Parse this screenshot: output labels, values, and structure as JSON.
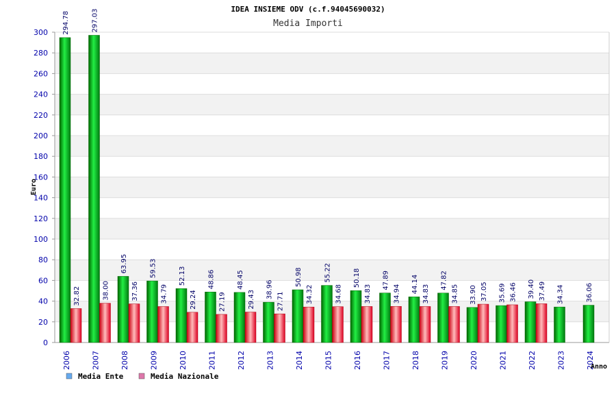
{
  "chart_data": {
    "type": "bar",
    "title": "IDEA INSIEME ODV (c.f.94045690032)",
    "subtitle": "Media Importi",
    "ylabel": "Euro",
    "xlabel": "Anno",
    "ylim": [
      0,
      300
    ],
    "yticks": [
      0,
      20,
      40,
      60,
      80,
      100,
      120,
      140,
      160,
      180,
      200,
      220,
      240,
      260,
      280,
      300
    ],
    "grid": true,
    "legend_position": "bottom-left",
    "categories": [
      "2006",
      "2007",
      "2008",
      "2009",
      "2010",
      "2011",
      "2012",
      "2013",
      "2014",
      "2015",
      "2016",
      "2017",
      "2018",
      "2019",
      "2020",
      "2021",
      "2022",
      "2023",
      "2024"
    ],
    "series": [
      {
        "name": "Media Ente",
        "color": "#00cc33",
        "legend_color": "#66aaee",
        "values": [
          294.78,
          297.03,
          63.95,
          59.53,
          52.13,
          48.86,
          48.45,
          38.96,
          50.98,
          55.22,
          50.18,
          47.89,
          44.14,
          47.82,
          33.9,
          35.69,
          39.4,
          34.34,
          36.06
        ],
        "labels": [
          "294.78",
          "297.03",
          "63.95",
          "59.53",
          "52.13",
          "48.86",
          "48.45",
          "38.96",
          "50.98",
          "55.22",
          "50.18",
          "47.89",
          "44.14",
          "47.82",
          "33.90",
          "35.69",
          "39.40",
          "34.34",
          "36.06"
        ]
      },
      {
        "name": "Media Nazionale",
        "color": "#ee2233",
        "legend_color": "#dd77aa",
        "values": [
          32.82,
          38.0,
          37.36,
          34.79,
          29.24,
          27.19,
          29.43,
          27.71,
          34.32,
          34.68,
          34.83,
          34.94,
          34.83,
          34.85,
          37.05,
          36.46,
          37.49,
          null,
          null
        ],
        "labels": [
          "32.82",
          "38.00",
          "37.36",
          "34.79",
          "29.24",
          "27.19",
          "29.43",
          "27.71",
          "34.32",
          "34.68",
          "34.83",
          "34.94",
          "34.83",
          "34.85",
          "37.05",
          "36.46",
          "37.49",
          "",
          ""
        ]
      }
    ]
  }
}
